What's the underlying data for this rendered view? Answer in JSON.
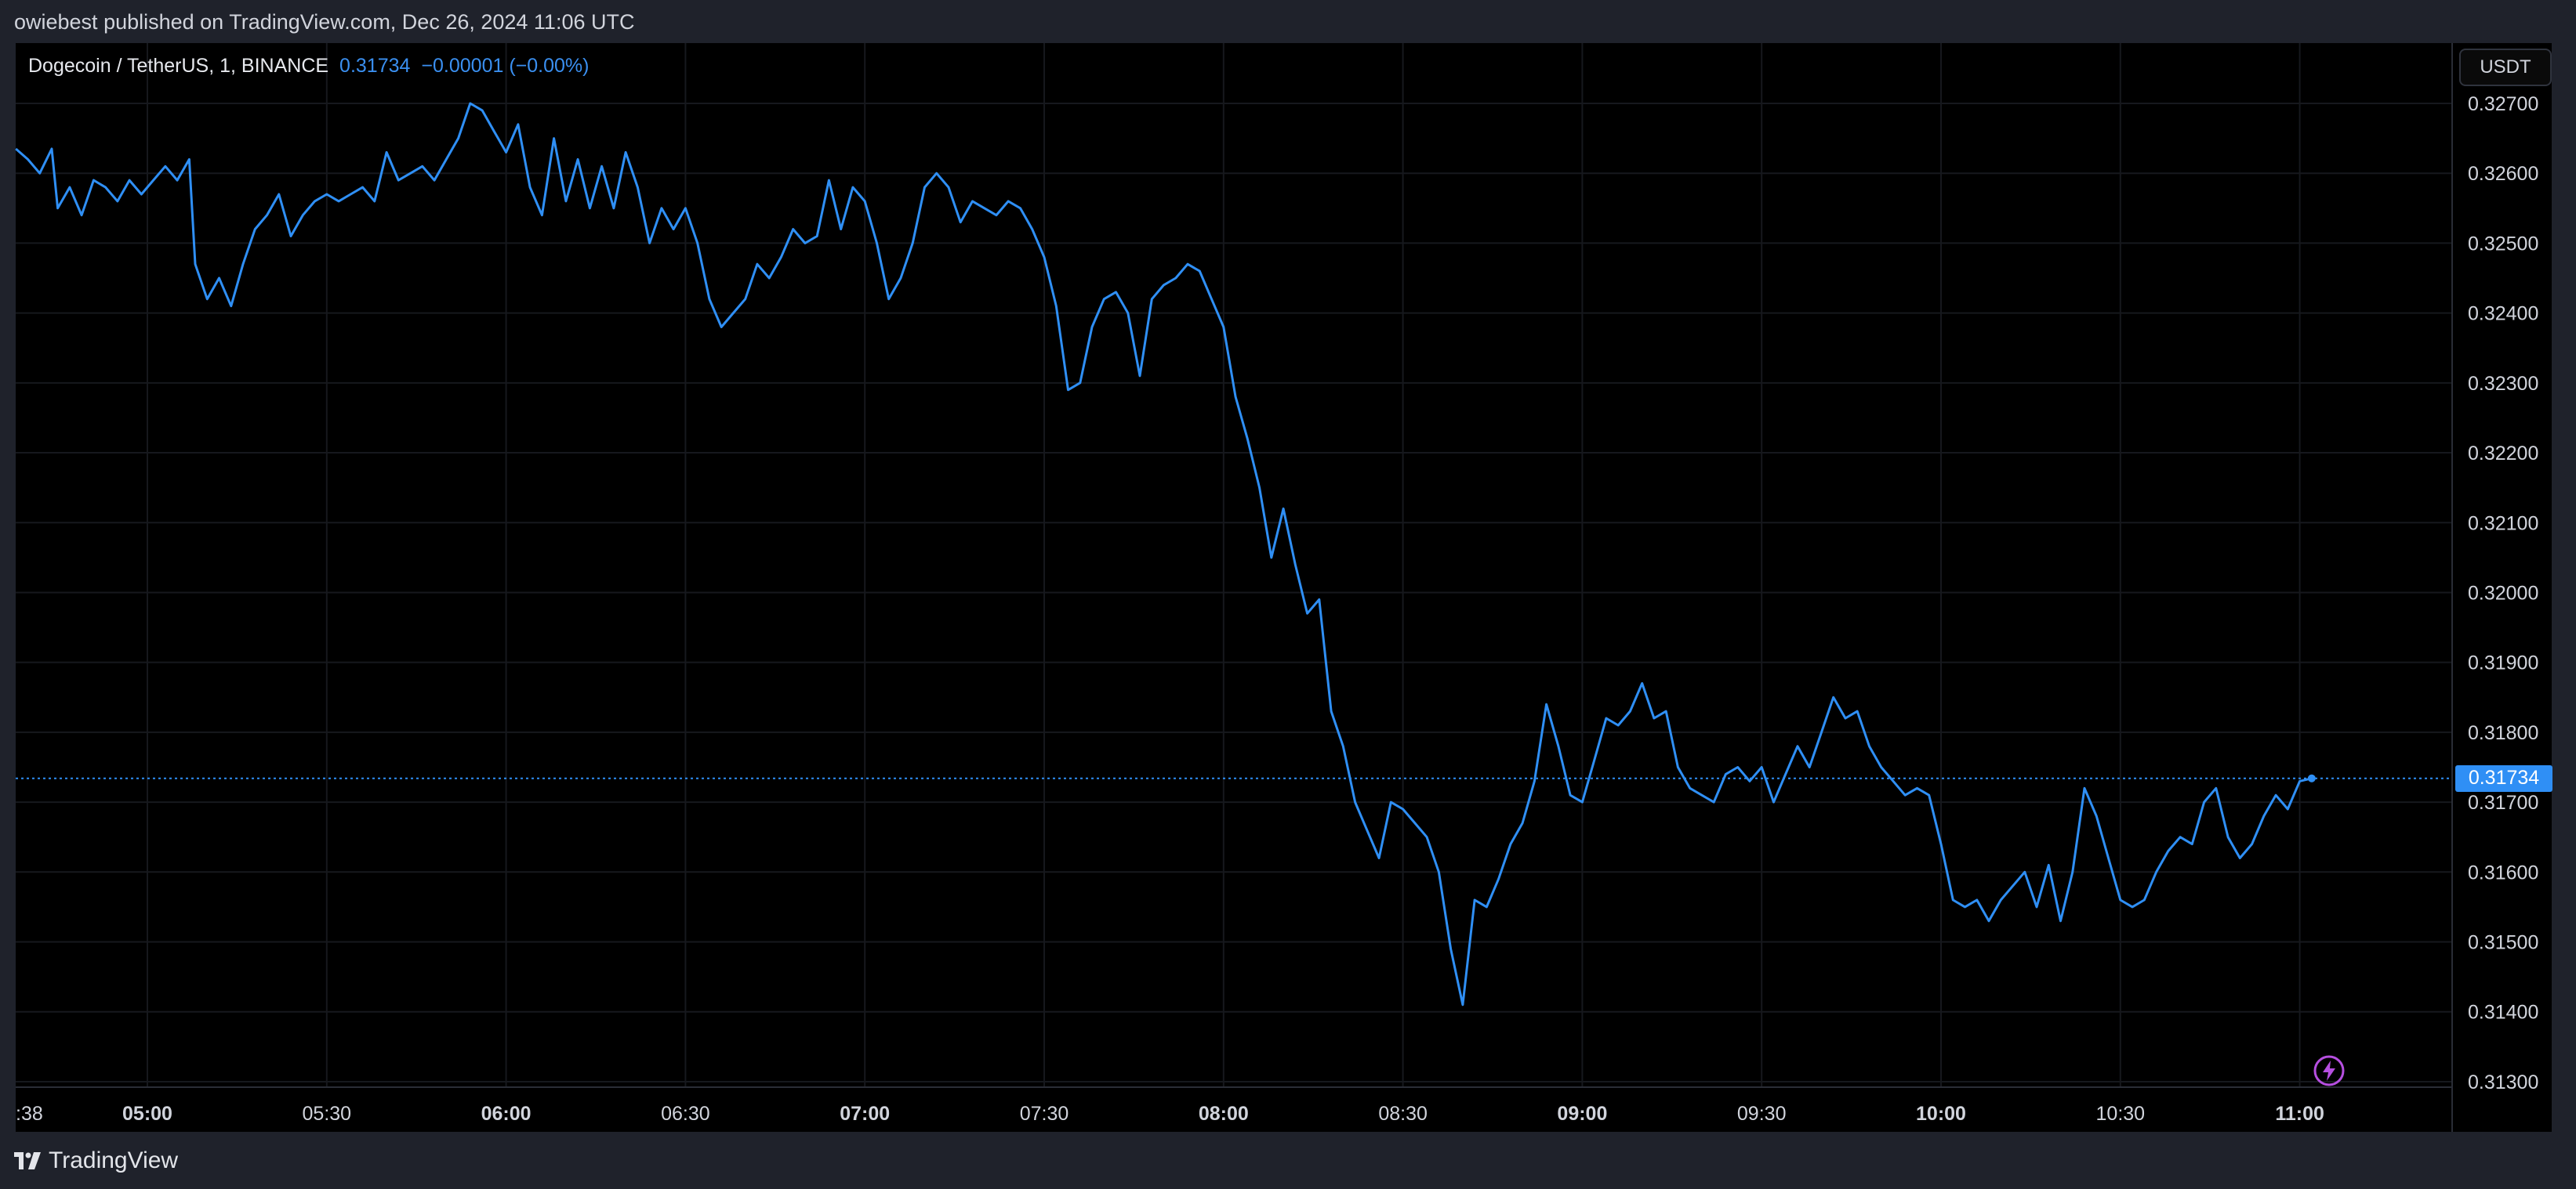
{
  "header": {
    "published_text": "owiebest published on TradingView.com, Dec 26, 2024 11:06 UTC"
  },
  "footer": {
    "brand": "TradingView",
    "logo_icon": "tradingview-logo-icon"
  },
  "legend": {
    "symbol": "Dogecoin / TetherUS, 1, BINANCE",
    "last": "0.31734",
    "change": "−0.00001 (−0.00%)"
  },
  "currency_button": "USDT",
  "last_price_label": "0.31734",
  "colors": {
    "background": "#000000",
    "frame": "#1f222b",
    "line": "#2f8ff5",
    "grid": "#16181d",
    "axis_text": "#d1d4dc"
  },
  "chart_data": {
    "type": "line",
    "title": "Dogecoin / TetherUS, 1, BINANCE",
    "xlabel": "",
    "ylabel": "",
    "ylim": [
      0.313,
      0.3273
    ],
    "grid": true,
    "y_ticks": [
      "0.32700",
      "0.32600",
      "0.32500",
      "0.32400",
      "0.32300",
      "0.32200",
      "0.32100",
      "0.32000",
      "0.31900",
      "0.31800",
      "0.31700",
      "0.31600",
      "0.31500",
      "0.31400",
      "0.31300"
    ],
    "x_ticks": [
      {
        "label": ":38",
        "time": "04:38",
        "bold": false
      },
      {
        "label": "05:00",
        "time": "05:00",
        "bold": true
      },
      {
        "label": "05:30",
        "time": "05:30",
        "bold": false
      },
      {
        "label": "06:00",
        "time": "06:00",
        "bold": true
      },
      {
        "label": "06:30",
        "time": "06:30",
        "bold": false
      },
      {
        "label": "07:00",
        "time": "07:00",
        "bold": true
      },
      {
        "label": "07:30",
        "time": "07:30",
        "bold": false
      },
      {
        "label": "08:00",
        "time": "08:00",
        "bold": true
      },
      {
        "label": "08:30",
        "time": "08:30",
        "bold": false
      },
      {
        "label": "09:00",
        "time": "09:00",
        "bold": true
      },
      {
        "label": "09:30",
        "time": "09:30",
        "bold": false
      },
      {
        "label": "10:00",
        "time": "10:00",
        "bold": true
      },
      {
        "label": "10:30",
        "time": "10:30",
        "bold": false
      },
      {
        "label": "11:00",
        "time": "11:00",
        "bold": true
      }
    ],
    "last_value": 0.31734,
    "series": [
      {
        "values": [
          [
            "04:38",
            0.32635
          ],
          [
            "04:40",
            0.3262
          ],
          [
            "04:42",
            0.326
          ],
          [
            "04:44",
            0.32635
          ],
          [
            "04:45",
            0.3255
          ],
          [
            "04:47",
            0.3258
          ],
          [
            "04:49",
            0.3254
          ],
          [
            "04:51",
            0.3259
          ],
          [
            "04:53",
            0.3258
          ],
          [
            "04:55",
            0.3256
          ],
          [
            "04:57",
            0.3259
          ],
          [
            "04:59",
            0.3257
          ],
          [
            "05:01",
            0.3259
          ],
          [
            "05:03",
            0.3261
          ],
          [
            "05:05",
            0.3259
          ],
          [
            "05:07",
            0.3262
          ],
          [
            "05:08",
            0.3247
          ],
          [
            "05:10",
            0.3242
          ],
          [
            "05:12",
            0.3245
          ],
          [
            "05:14",
            0.3241
          ],
          [
            "05:16",
            0.3247
          ],
          [
            "05:18",
            0.3252
          ],
          [
            "05:20",
            0.3254
          ],
          [
            "05:22",
            0.3257
          ],
          [
            "05:24",
            0.3251
          ],
          [
            "05:26",
            0.3254
          ],
          [
            "05:28",
            0.3256
          ],
          [
            "05:30",
            0.3257
          ],
          [
            "05:32",
            0.3256
          ],
          [
            "05:34",
            0.3257
          ],
          [
            "05:36",
            0.3258
          ],
          [
            "05:38",
            0.3256
          ],
          [
            "05:40",
            0.3263
          ],
          [
            "05:42",
            0.3259
          ],
          [
            "05:44",
            0.326
          ],
          [
            "05:46",
            0.3261
          ],
          [
            "05:48",
            0.3259
          ],
          [
            "05:50",
            0.3262
          ],
          [
            "05:52",
            0.3265
          ],
          [
            "05:54",
            0.327
          ],
          [
            "05:56",
            0.3269
          ],
          [
            "05:58",
            0.3266
          ],
          [
            "06:00",
            0.3263
          ],
          [
            "06:02",
            0.3267
          ],
          [
            "06:04",
            0.3258
          ],
          [
            "06:06",
            0.3254
          ],
          [
            "06:08",
            0.3265
          ],
          [
            "06:10",
            0.3256
          ],
          [
            "06:12",
            0.3262
          ],
          [
            "06:14",
            0.3255
          ],
          [
            "06:16",
            0.3261
          ],
          [
            "06:18",
            0.3255
          ],
          [
            "06:20",
            0.3263
          ],
          [
            "06:22",
            0.3258
          ],
          [
            "06:24",
            0.325
          ],
          [
            "06:26",
            0.3255
          ],
          [
            "06:28",
            0.3252
          ],
          [
            "06:30",
            0.3255
          ],
          [
            "06:32",
            0.325
          ],
          [
            "06:34",
            0.3242
          ],
          [
            "06:36",
            0.3238
          ],
          [
            "06:38",
            0.324
          ],
          [
            "06:40",
            0.3242
          ],
          [
            "06:42",
            0.3247
          ],
          [
            "06:44",
            0.3245
          ],
          [
            "06:46",
            0.3248
          ],
          [
            "06:48",
            0.3252
          ],
          [
            "06:50",
            0.325
          ],
          [
            "06:52",
            0.3251
          ],
          [
            "06:54",
            0.3259
          ],
          [
            "06:56",
            0.3252
          ],
          [
            "06:58",
            0.3258
          ],
          [
            "07:00",
            0.3256
          ],
          [
            "07:02",
            0.325
          ],
          [
            "07:04",
            0.3242
          ],
          [
            "07:06",
            0.3245
          ],
          [
            "07:08",
            0.325
          ],
          [
            "07:10",
            0.3258
          ],
          [
            "07:12",
            0.326
          ],
          [
            "07:14",
            0.3258
          ],
          [
            "07:16",
            0.3253
          ],
          [
            "07:18",
            0.3256
          ],
          [
            "07:20",
            0.3255
          ],
          [
            "07:22",
            0.3254
          ],
          [
            "07:24",
            0.3256
          ],
          [
            "07:26",
            0.3255
          ],
          [
            "07:28",
            0.3252
          ],
          [
            "07:30",
            0.3248
          ],
          [
            "07:32",
            0.3241
          ],
          [
            "07:34",
            0.3229
          ],
          [
            "07:36",
            0.323
          ],
          [
            "07:38",
            0.3238
          ],
          [
            "07:40",
            0.3242
          ],
          [
            "07:42",
            0.3243
          ],
          [
            "07:44",
            0.324
          ],
          [
            "07:46",
            0.3231
          ],
          [
            "07:48",
            0.3242
          ],
          [
            "07:50",
            0.3244
          ],
          [
            "07:52",
            0.3245
          ],
          [
            "07:54",
            0.3247
          ],
          [
            "07:56",
            0.3246
          ],
          [
            "07:58",
            0.3242
          ],
          [
            "08:00",
            0.3238
          ],
          [
            "08:02",
            0.3228
          ],
          [
            "08:04",
            0.3222
          ],
          [
            "08:06",
            0.3215
          ],
          [
            "08:08",
            0.3205
          ],
          [
            "08:10",
            0.3212
          ],
          [
            "08:12",
            0.3204
          ],
          [
            "08:14",
            0.3197
          ],
          [
            "08:16",
            0.3199
          ],
          [
            "08:18",
            0.3183
          ],
          [
            "08:20",
            0.3178
          ],
          [
            "08:22",
            0.317
          ],
          [
            "08:24",
            0.3166
          ],
          [
            "08:26",
            0.3162
          ],
          [
            "08:28",
            0.317
          ],
          [
            "08:30",
            0.3169
          ],
          [
            "08:32",
            0.3167
          ],
          [
            "08:34",
            0.3165
          ],
          [
            "08:36",
            0.316
          ],
          [
            "08:38",
            0.3149
          ],
          [
            "08:40",
            0.3141
          ],
          [
            "08:42",
            0.3156
          ],
          [
            "08:44",
            0.3155
          ],
          [
            "08:46",
            0.3159
          ],
          [
            "08:48",
            0.3164
          ],
          [
            "08:50",
            0.3167
          ],
          [
            "08:52",
            0.3173
          ],
          [
            "08:54",
            0.3184
          ],
          [
            "08:56",
            0.3178
          ],
          [
            "08:58",
            0.3171
          ],
          [
            "09:00",
            0.317
          ],
          [
            "09:02",
            0.3176
          ],
          [
            "09:04",
            0.3182
          ],
          [
            "09:06",
            0.3181
          ],
          [
            "09:08",
            0.3183
          ],
          [
            "09:10",
            0.3187
          ],
          [
            "09:12",
            0.3182
          ],
          [
            "09:14",
            0.3183
          ],
          [
            "09:16",
            0.3175
          ],
          [
            "09:18",
            0.3172
          ],
          [
            "09:20",
            0.3171
          ],
          [
            "09:22",
            0.317
          ],
          [
            "09:24",
            0.3174
          ],
          [
            "09:26",
            0.3175
          ],
          [
            "09:28",
            0.3173
          ],
          [
            "09:30",
            0.3175
          ],
          [
            "09:32",
            0.317
          ],
          [
            "09:34",
            0.3174
          ],
          [
            "09:36",
            0.3178
          ],
          [
            "09:38",
            0.3175
          ],
          [
            "09:40",
            0.318
          ],
          [
            "09:42",
            0.3185
          ],
          [
            "09:44",
            0.3182
          ],
          [
            "09:46",
            0.3183
          ],
          [
            "09:48",
            0.3178
          ],
          [
            "09:50",
            0.3175
          ],
          [
            "09:52",
            0.3173
          ],
          [
            "09:54",
            0.3171
          ],
          [
            "09:56",
            0.3172
          ],
          [
            "09:58",
            0.3171
          ],
          [
            "10:00",
            0.3164
          ],
          [
            "10:02",
            0.3156
          ],
          [
            "10:04",
            0.3155
          ],
          [
            "10:06",
            0.3156
          ],
          [
            "10:08",
            0.3153
          ],
          [
            "10:10",
            0.3156
          ],
          [
            "10:12",
            0.3158
          ],
          [
            "10:14",
            0.316
          ],
          [
            "10:16",
            0.3155
          ],
          [
            "10:18",
            0.3161
          ],
          [
            "10:20",
            0.3153
          ],
          [
            "10:22",
            0.316
          ],
          [
            "10:24",
            0.3172
          ],
          [
            "10:26",
            0.3168
          ],
          [
            "10:28",
            0.3162
          ],
          [
            "10:30",
            0.3156
          ],
          [
            "10:32",
            0.3155
          ],
          [
            "10:34",
            0.3156
          ],
          [
            "10:36",
            0.316
          ],
          [
            "10:38",
            0.3163
          ],
          [
            "10:40",
            0.3165
          ],
          [
            "10:42",
            0.3164
          ],
          [
            "10:44",
            0.317
          ],
          [
            "10:46",
            0.3172
          ],
          [
            "10:48",
            0.3165
          ],
          [
            "10:50",
            0.3162
          ],
          [
            "10:52",
            0.3164
          ],
          [
            "10:54",
            0.3168
          ],
          [
            "10:56",
            0.3171
          ],
          [
            "10:58",
            0.3169
          ],
          [
            "11:00",
            0.3173
          ],
          [
            "11:02",
            0.31734
          ]
        ]
      }
    ]
  }
}
